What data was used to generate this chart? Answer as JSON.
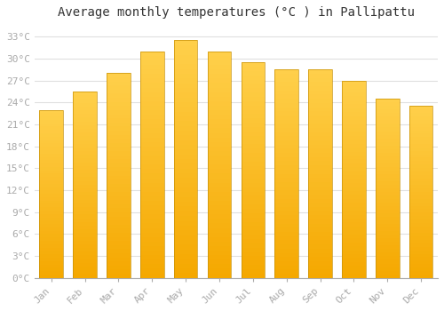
{
  "title": "Average monthly temperatures (°C ) in Pallipattu",
  "months": [
    "Jan",
    "Feb",
    "Mar",
    "Apr",
    "May",
    "Jun",
    "Jul",
    "Aug",
    "Sep",
    "Oct",
    "Nov",
    "Dec"
  ],
  "temperatures": [
    23.0,
    25.5,
    28.0,
    31.0,
    32.5,
    31.0,
    29.5,
    28.5,
    28.5,
    27.0,
    24.5,
    23.5
  ],
  "bar_color_top": "#FFD04B",
  "bar_color_bottom": "#F5A800",
  "bar_edge_color": "#C8920A",
  "background_color": "#ffffff",
  "grid_color": "#e0e0e0",
  "yticks": [
    0,
    3,
    6,
    9,
    12,
    15,
    18,
    21,
    24,
    27,
    30,
    33
  ],
  "ylim": [
    0,
    34.5
  ],
  "title_fontsize": 10,
  "tick_fontsize": 8,
  "tick_color": "#aaaaaa",
  "font_family": "monospace",
  "bar_width": 0.7,
  "figsize": [
    5.0,
    3.5
  ],
  "dpi": 100
}
